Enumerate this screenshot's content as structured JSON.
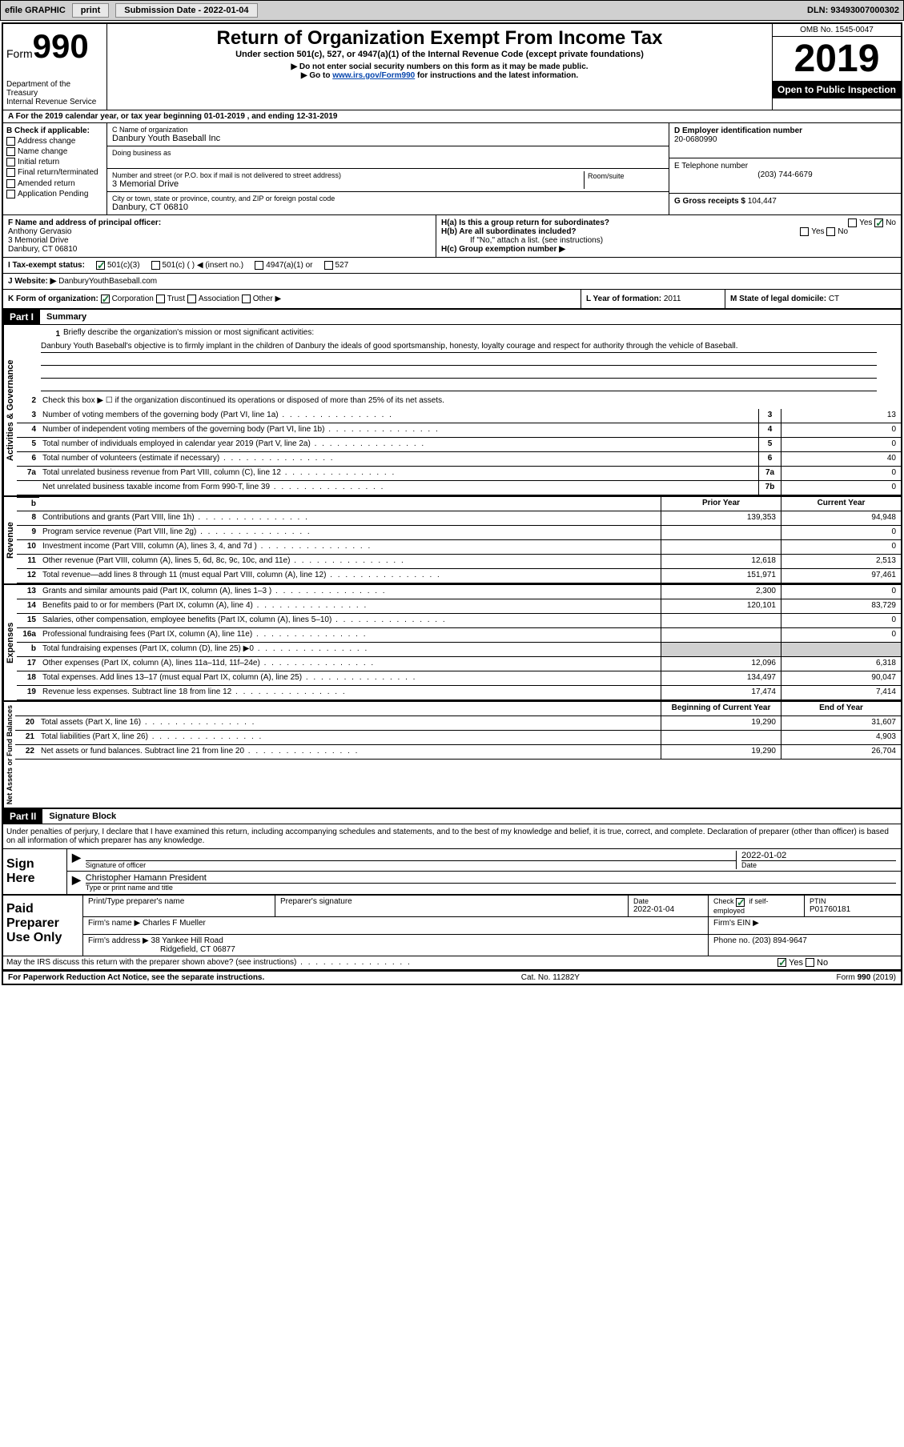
{
  "toolbar": {
    "efile": "efile GRAPHIC",
    "print": "print",
    "submission_label": "Submission Date - 2022-01-04",
    "dln": "DLN: 93493007000302"
  },
  "header": {
    "form_label": "Form",
    "form_number": "990",
    "dept": "Department of the Treasury\nInternal Revenue Service",
    "title": "Return of Organization Exempt From Income Tax",
    "subtitle": "Under section 501(c), 527, or 4947(a)(1) of the Internal Revenue Code (except private foundations)",
    "instr1": "▶ Do not enter social security numbers on this form as it may be made public.",
    "instr2_pre": "▶ Go to ",
    "instr2_link": "www.irs.gov/Form990",
    "instr2_post": " for instructions and the latest information.",
    "omb": "OMB No. 1545-0047",
    "year": "2019",
    "open": "Open to Public Inspection"
  },
  "period": "A For the 2019 calendar year, or tax year beginning 01-01-2019     , and ending 12-31-2019",
  "section_b": {
    "label": "B Check if applicable:",
    "opts": [
      "Address change",
      "Name change",
      "Initial return",
      "Final return/terminated",
      "Amended return",
      "Application Pending"
    ]
  },
  "section_c": {
    "name_label": "C Name of organization",
    "name": "Danbury Youth Baseball Inc",
    "dba_label": "Doing business as",
    "addr_label": "Number and street (or P.O. box if mail is not delivered to street address)",
    "room_label": "Room/suite",
    "addr": "3 Memorial Drive",
    "city_label": "City or town, state or province, country, and ZIP or foreign postal code",
    "city": "Danbury, CT  06810"
  },
  "section_d": {
    "label": "D Employer identification number",
    "val": "20-0680990"
  },
  "section_e": {
    "label": "E Telephone number",
    "val": "(203) 744-6679"
  },
  "section_g": {
    "label": "G Gross receipts $",
    "val": "104,447"
  },
  "section_f": {
    "label": "F  Name and address of principal officer:",
    "name": "Anthony Gervasio",
    "addr1": "3 Memorial Drive",
    "addr2": "Danbury, CT  06810"
  },
  "section_h": {
    "ha": "H(a)  Is this a group return for subordinates?",
    "hb": "H(b)  Are all subordinates included?",
    "hb_note": "If \"No,\" attach a list. (see instructions)",
    "hc": "H(c)  Group exemption number ▶",
    "yes": "Yes",
    "no": "No"
  },
  "section_i": {
    "label": "I   Tax-exempt status:",
    "o1": "501(c)(3)",
    "o2": "501(c) (  ) ◀ (insert no.)",
    "o3": "4947(a)(1) or",
    "o4": "527"
  },
  "section_j": {
    "label": "J   Website: ▶",
    "val": "DanburyYouthBaseball.com"
  },
  "section_k": {
    "label": "K Form of organization:",
    "o1": "Corporation",
    "o2": "Trust",
    "o3": "Association",
    "o4": "Other ▶"
  },
  "section_l": {
    "label": "L Year of formation:",
    "val": "2011"
  },
  "section_m": {
    "label": "M State of legal domicile:",
    "val": "CT"
  },
  "part1": {
    "header": "Part I",
    "title": "Summary",
    "q1_label": "1",
    "q1": "Briefly describe the organization's mission or most significant activities:",
    "mission": "Danbury Youth Baseball's objective is to firmly implant in the children of Danbury the ideals of good sportsmanship, honesty, loyalty courage and respect for authority through the vehicle of Baseball.",
    "q2": "Check this box ▶ ☐  if the organization discontinued its operations or disposed of more than 25% of its net assets.",
    "cols": {
      "prior": "Prior Year",
      "current": "Current Year",
      "boy": "Beginning of Current Year",
      "eoy": "End of Year"
    },
    "sidebars": {
      "gov": "Activities & Governance",
      "rev": "Revenue",
      "exp": "Expenses",
      "net": "Net Assets or Fund Balances"
    },
    "lines_gov": [
      {
        "n": "3",
        "d": "Number of voting members of the governing body (Part VI, line 1a)",
        "box": "3",
        "v": "13"
      },
      {
        "n": "4",
        "d": "Number of independent voting members of the governing body (Part VI, line 1b)",
        "box": "4",
        "v": "0"
      },
      {
        "n": "5",
        "d": "Total number of individuals employed in calendar year 2019 (Part V, line 2a)",
        "box": "5",
        "v": "0"
      },
      {
        "n": "6",
        "d": "Total number of volunteers (estimate if necessary)",
        "box": "6",
        "v": "40"
      },
      {
        "n": "7a",
        "d": "Total unrelated business revenue from Part VIII, column (C), line 12",
        "box": "7a",
        "v": "0"
      },
      {
        "n": "",
        "d": "Net unrelated business taxable income from Form 990-T, line 39",
        "box": "7b",
        "v": "0"
      }
    ],
    "lines_rev": [
      {
        "n": "8",
        "d": "Contributions and grants (Part VIII, line 1h)",
        "p": "139,353",
        "c": "94,948"
      },
      {
        "n": "9",
        "d": "Program service revenue (Part VIII, line 2g)",
        "p": "",
        "c": "0"
      },
      {
        "n": "10",
        "d": "Investment income (Part VIII, column (A), lines 3, 4, and 7d )",
        "p": "",
        "c": "0"
      },
      {
        "n": "11",
        "d": "Other revenue (Part VIII, column (A), lines 5, 6d, 8c, 9c, 10c, and 11e)",
        "p": "12,618",
        "c": "2,513"
      },
      {
        "n": "12",
        "d": "Total revenue—add lines 8 through 11 (must equal Part VIII, column (A), line 12)",
        "p": "151,971",
        "c": "97,461"
      }
    ],
    "lines_exp": [
      {
        "n": "13",
        "d": "Grants and similar amounts paid (Part IX, column (A), lines 1–3 )",
        "p": "2,300",
        "c": "0"
      },
      {
        "n": "14",
        "d": "Benefits paid to or for members (Part IX, column (A), line 4)",
        "p": "120,101",
        "c": "83,729"
      },
      {
        "n": "15",
        "d": "Salaries, other compensation, employee benefits (Part IX, column (A), lines 5–10)",
        "p": "",
        "c": "0"
      },
      {
        "n": "16a",
        "d": "Professional fundraising fees (Part IX, column (A), line 11e)",
        "p": "",
        "c": "0"
      },
      {
        "n": "b",
        "d": "Total fundraising expenses (Part IX, column (D), line 25) ▶0",
        "p": "shaded",
        "c": "shaded"
      },
      {
        "n": "17",
        "d": "Other expenses (Part IX, column (A), lines 11a–11d, 11f–24e)",
        "p": "12,096",
        "c": "6,318"
      },
      {
        "n": "18",
        "d": "Total expenses. Add lines 13–17 (must equal Part IX, column (A), line 25)",
        "p": "134,497",
        "c": "90,047"
      },
      {
        "n": "19",
        "d": "Revenue less expenses. Subtract line 18 from line 12",
        "p": "17,474",
        "c": "7,414"
      }
    ],
    "lines_net": [
      {
        "n": "20",
        "d": "Total assets (Part X, line 16)",
        "p": "19,290",
        "c": "31,607"
      },
      {
        "n": "21",
        "d": "Total liabilities (Part X, line 26)",
        "p": "",
        "c": "4,903"
      },
      {
        "n": "22",
        "d": "Net assets or fund balances. Subtract line 21 from line 20",
        "p": "19,290",
        "c": "26,704"
      }
    ]
  },
  "part2": {
    "header": "Part II",
    "title": "Signature Block",
    "penalty": "Under penalties of perjury, I declare that I have examined this return, including accompanying schedules and statements, and to the best of my knowledge and belief, it is true, correct, and complete. Declaration of preparer (other than officer) is based on all information of which preparer has any knowledge.",
    "sign_here": "Sign Here",
    "sig_officer": "Signature of officer",
    "sig_date": "2022-01-02",
    "date_label": "Date",
    "officer_name": "Christopher Hamann President",
    "officer_title_label": "Type or print name and title",
    "paid": "Paid Preparer Use Only",
    "print_name": "Print/Type preparer's name",
    "prep_sig": "Preparer's signature",
    "prep_date_label": "Date",
    "prep_date": "2022-01-04",
    "check_self": "Check ☑ if self-employed",
    "ptin_label": "PTIN",
    "ptin": "P01760181",
    "firm_name_label": "Firm's name    ▶",
    "firm_name": "Charles F Mueller",
    "firm_ein": "Firm's EIN ▶",
    "firm_addr_label": "Firm's address ▶",
    "firm_addr": "38 Yankee Hill Road",
    "firm_city": "Ridgefield, CT  06877",
    "phone_label": "Phone no.",
    "phone": "(203) 894-9647",
    "discuss": "May the IRS discuss this return with the preparer shown above? (see instructions)",
    "yes": "Yes",
    "no": "No"
  },
  "footer": {
    "left": "For Paperwork Reduction Act Notice, see the separate instructions.",
    "mid": "Cat. No. 11282Y",
    "right": "Form 990 (2019)"
  }
}
